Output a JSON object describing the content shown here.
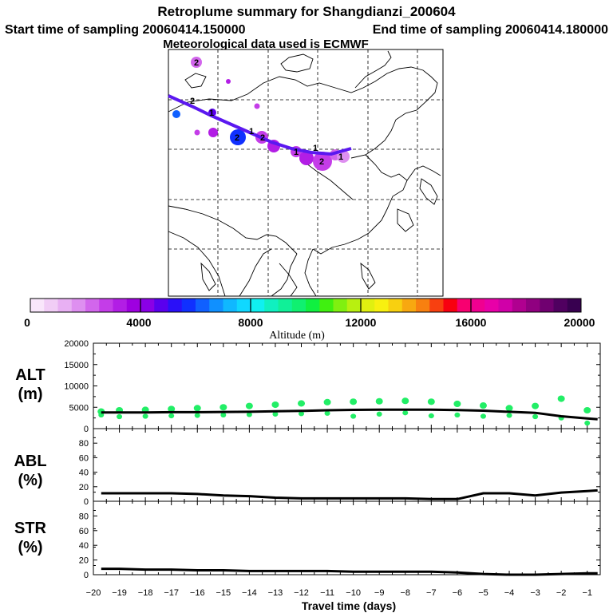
{
  "header": {
    "title": "Retroplume summary for Shangdianzi_200604",
    "start_label": "Start time of sampling 20060414.150000",
    "end_label": "End time of sampling 20060414.180000",
    "met_label": "Meteorological data used is ECMWF"
  },
  "colorbar": {
    "label": "Altitude (m)",
    "ticks": [
      "0",
      "4000",
      "8000",
      "12000",
      "16000",
      "20000"
    ],
    "colors": [
      "#f9e6fb",
      "#f1cdf6",
      "#e8b0f3",
      "#de8ff0",
      "#d266ec",
      "#c43de8",
      "#b21ee5",
      "#9e00e0",
      "#8a00e6",
      "#5a00ee",
      "#2a10f8",
      "#1030ff",
      "#1060ff",
      "#1090ff",
      "#10b8ff",
      "#10d8ff",
      "#10f0f0",
      "#10f0c0",
      "#10f098",
      "#10f070",
      "#10f040",
      "#40f010",
      "#80f010",
      "#b8f010",
      "#e0f010",
      "#f8f010",
      "#f8d010",
      "#f8a810",
      "#f88010",
      "#f84010",
      "#f80010",
      "#f80070",
      "#f00090",
      "#e800a8",
      "#d000a8",
      "#b00090",
      "#900080",
      "#700070",
      "#500060",
      "#380050"
    ]
  },
  "chart_data": [
    {
      "type": "scatter",
      "panel": "ALT",
      "ylabel_line1": "ALT",
      "ylabel_line2": "(m)",
      "ylim": [
        0,
        20000
      ],
      "yticks": [
        "0",
        "5000",
        "10000",
        "15000",
        "20000"
      ],
      "mean_line": {
        "x": [
          -19.7,
          -19,
          -18,
          -17,
          -16,
          -15,
          -14,
          -13,
          -12,
          -11,
          -10,
          -9,
          -8,
          -7,
          -6,
          -5,
          -4,
          -3,
          -2,
          -1,
          -0.6
        ],
        "y": [
          3800,
          3800,
          3800,
          3850,
          3850,
          3900,
          3950,
          4050,
          4150,
          4300,
          4400,
          4450,
          4450,
          4450,
          4350,
          4200,
          3950,
          3700,
          2900,
          2400,
          2200
        ]
      },
      "points": {
        "x": [
          -19.7,
          -19.7,
          -19,
          -19,
          -18,
          -18,
          -17,
          -17,
          -16,
          -16,
          -15,
          -15,
          -14,
          -14,
          -13,
          -13,
          -12,
          -12,
          -11,
          -11,
          -10,
          -10,
          -9,
          -9,
          -8,
          -8,
          -7,
          -7,
          -6,
          -6,
          -5,
          -5,
          -4,
          -4,
          -3,
          -3,
          -2,
          -2,
          -1,
          -1
        ],
        "y": [
          4000,
          3200,
          4300,
          2800,
          4400,
          2900,
          4600,
          3000,
          4800,
          3100,
          5000,
          3200,
          5300,
          3300,
          5600,
          3400,
          5900,
          3500,
          6200,
          3600,
          6300,
          2900,
          6400,
          3400,
          6500,
          3700,
          6300,
          3000,
          5800,
          3200,
          5400,
          2900,
          4800,
          3100,
          5300,
          2800,
          7000,
          2500,
          4300,
          1300
        ]
      }
    },
    {
      "type": "line",
      "panel": "ABL",
      "ylabel_line1": "ABL",
      "ylabel_line2": "(%)",
      "ylim": [
        0,
        100
      ],
      "yticks": [
        "0",
        "20",
        "40",
        "60",
        "80"
      ],
      "x": [
        -19.7,
        -19,
        -18,
        -17,
        -16,
        -15,
        -14,
        -13,
        -12,
        -11,
        -10,
        -9,
        -8,
        -7,
        -6,
        -5,
        -4,
        -3,
        -2,
        -1,
        -0.6
      ],
      "y": [
        11,
        11,
        11,
        11,
        10,
        8,
        7,
        5,
        4,
        4,
        4,
        4,
        4,
        3,
        3,
        11,
        11,
        8,
        12,
        14,
        15
      ]
    },
    {
      "type": "line",
      "panel": "STR",
      "ylabel_line1": "STR",
      "ylabel_line2": "(%)",
      "ylim": [
        0,
        100
      ],
      "yticks": [
        "0",
        "20",
        "40",
        "60",
        "80"
      ],
      "x": [
        -19.7,
        -19,
        -18,
        -17,
        -16,
        -15,
        -14,
        -13,
        -12,
        -11,
        -10,
        -9,
        -8,
        -7,
        -6,
        -5,
        -4,
        -3,
        -2,
        -1,
        -0.6
      ],
      "y": [
        8,
        8,
        7,
        7,
        6,
        6,
        5,
        5,
        5,
        5,
        4,
        4,
        4,
        4,
        3,
        1,
        0,
        0,
        1,
        2,
        2
      ]
    }
  ],
  "xaxis": {
    "label": "Travel time (days)",
    "ticks": [
      "−20",
      "−19",
      "−18",
      "−17",
      "−16",
      "−15",
      "−14",
      "−13",
      "−12",
      "−11",
      "−10",
      "−9",
      "−8",
      "−7",
      "−6",
      "−5",
      "−4",
      "−3",
      "−2",
      "−1"
    ]
  },
  "map": {
    "labels": [
      "2",
      "2",
      "1",
      "2",
      "1",
      "2",
      "1",
      "1",
      "2",
      "1"
    ],
    "path_color": "#5b18f0"
  }
}
